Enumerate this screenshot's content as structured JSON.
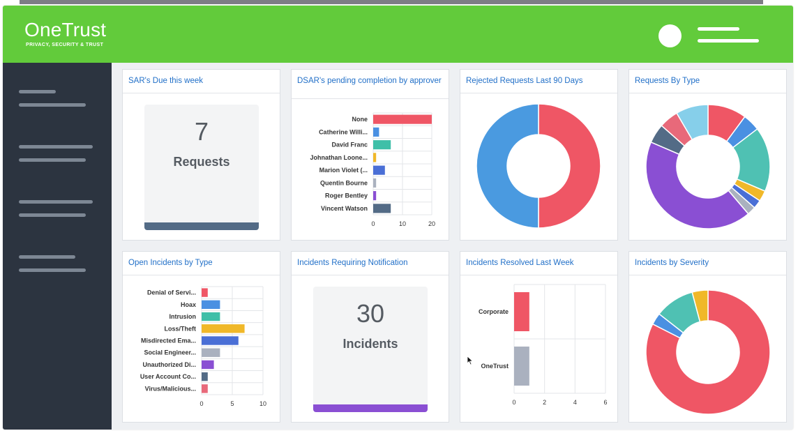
{
  "app": {
    "logo": "OneTrust",
    "tagline": "PRIVACY, SECURITY & TRUST"
  },
  "colors": {
    "header": "#62cb3b",
    "sidebar": "#2c3440",
    "title": "#2270c8"
  },
  "cards": {
    "sar_due": {
      "title": "SAR's Due this week",
      "value": "7",
      "label": "Requests",
      "bar_color": "#536b86"
    },
    "dsar_pending": {
      "title": "DSAR's pending completion by approver"
    },
    "rejected": {
      "title": "Rejected Requests Last 90 Days"
    },
    "by_type": {
      "title": "Requests By Type"
    },
    "open_incidents": {
      "title": "Open Incidents by Type"
    },
    "incidents_notify": {
      "title": "Incidents Requiring Notification",
      "value": "30",
      "label": "Incidents",
      "bar_color": "#8a4fd3"
    },
    "resolved": {
      "title": "Incidents Resolved Last Week"
    },
    "severity": {
      "title": "Incidents by Severity"
    }
  },
  "chart_data": [
    {
      "id": "dsar",
      "type": "bar",
      "orientation": "horizontal",
      "title": "DSAR's pending completion by approver",
      "categories": [
        "None",
        "Catherine Willi...",
        "David Franc",
        "Johnathan Loone...",
        "Marion Violet (...",
        "Quentin Bourne",
        "Roger Bentley",
        "Vincent Watson"
      ],
      "values": [
        20,
        2,
        6,
        1,
        4,
        1,
        1,
        6
      ],
      "colors": [
        "#ef5665",
        "#4a90e2",
        "#3fbfa8",
        "#f0b829",
        "#4a6fd6",
        "#aab1bf",
        "#8a4fd3",
        "#536b86"
      ],
      "xticks": [
        "0",
        "10",
        "20"
      ],
      "xlim": [
        0,
        20
      ]
    },
    {
      "id": "rejected",
      "type": "pie",
      "donut": true,
      "title": "Rejected Requests Last 90 Days",
      "values": [
        50,
        50
      ],
      "colors": [
        "#ef5665",
        "#4a9ae0"
      ]
    },
    {
      "id": "bytype",
      "type": "pie",
      "donut": true,
      "title": "Requests By Type",
      "values": [
        9,
        4,
        15,
        2.5,
        2,
        2,
        38,
        4.5,
        4.5,
        7.5
      ],
      "colors": [
        "#ef5665",
        "#4a90e2",
        "#4fc1b3",
        "#f0b829",
        "#4a6fd6",
        "#aab1bf",
        "#8a4fd3",
        "#536b86",
        "#e8697a",
        "#86cfea"
      ]
    },
    {
      "id": "openinc",
      "type": "bar",
      "orientation": "horizontal",
      "title": "Open Incidents by Type",
      "categories": [
        "Denial of Servi...",
        "Hoax",
        "Intrusion",
        "Loss/Theft",
        "Misdirected Ema...",
        "Social Engineer...",
        "Unauthorized Di...",
        "User Account Co...",
        "Virus/Malicious..."
      ],
      "values": [
        1,
        3,
        3,
        7,
        6,
        3,
        2,
        1,
        1
      ],
      "colors": [
        "#ef5665",
        "#4a90e2",
        "#3fbfa8",
        "#f0b829",
        "#4a6fd6",
        "#aab1bf",
        "#8a4fd3",
        "#536b86",
        "#e8697a"
      ],
      "xticks": [
        "0",
        "5",
        "10"
      ],
      "xlim": [
        0,
        10
      ]
    },
    {
      "id": "resolved",
      "type": "bar",
      "orientation": "horizontal",
      "title": "Incidents Resolved Last Week",
      "categories": [
        "Corporate",
        "OneTrust"
      ],
      "values": [
        1,
        1
      ],
      "colors": [
        "#ef5665",
        "#aab1bf"
      ],
      "xticks": [
        "0",
        "2",
        "4",
        "6"
      ],
      "xlim": [
        0,
        6
      ]
    },
    {
      "id": "severity",
      "type": "pie",
      "donut": true,
      "title": "Incidents by Severity",
      "values": [
        80,
        3,
        10,
        4
      ],
      "colors": [
        "#ef5665",
        "#4a90e2",
        "#4fc1b3",
        "#f0b829"
      ]
    }
  ]
}
